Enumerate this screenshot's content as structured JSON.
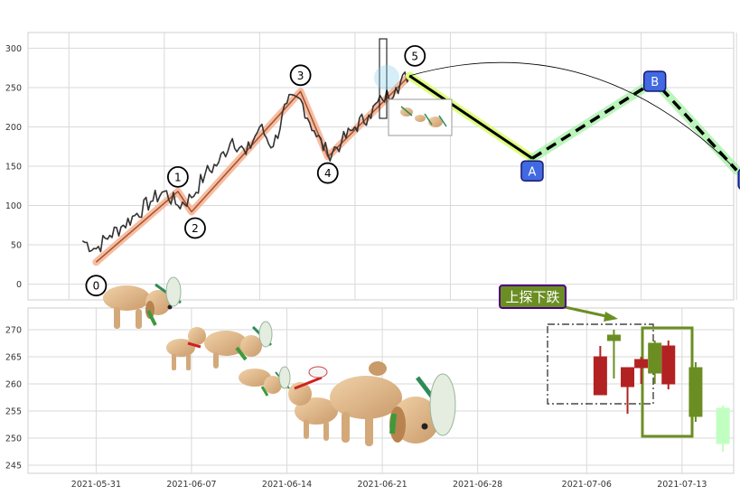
{
  "chart_data": [
    {
      "type": "line",
      "panel": "top",
      "ylim": [
        -20,
        320
      ],
      "yticks": [
        0,
        50,
        100,
        150,
        200,
        250,
        300
      ],
      "xlabel": "",
      "ylabel": "",
      "grid": true,
      "price_series": {
        "x": [
          "2021-05-30",
          "2021-05-31",
          "2021-06-01",
          "2021-06-02",
          "2021-06-03",
          "2021-06-04",
          "2021-06-05",
          "2021-06-06",
          "2021-06-07",
          "2021-06-08",
          "2021-06-09",
          "2021-06-10",
          "2021-06-11",
          "2021-06-12",
          "2021-06-13",
          "2021-06-14",
          "2021-06-15",
          "2021-06-16",
          "2021-06-17",
          "2021-06-18",
          "2021-06-19",
          "2021-06-20",
          "2021-06-21",
          "2021-06-22",
          "2021-06-23"
        ],
        "y": [
          55,
          45,
          62,
          75,
          90,
          105,
          118,
          100,
          110,
          140,
          155,
          185,
          165,
          200,
          175,
          230,
          235,
          195,
          165,
          180,
          200,
          215,
          235,
          250,
          268
        ]
      },
      "wave_points": [
        {
          "label": "0",
          "x": "2021-05-31",
          "y": 28
        },
        {
          "label": "1",
          "x": "2021-06-06",
          "y": 118
        },
        {
          "label": "2",
          "x": "2021-06-07",
          "y": 92
        },
        {
          "label": "3",
          "x": "2021-06-15",
          "y": 245
        },
        {
          "label": "4",
          "x": "2021-06-17",
          "y": 162
        },
        {
          "label": "5",
          "x": "2021-06-23",
          "y": 265
        }
      ],
      "correction_points": [
        {
          "label": "A",
          "x": "2021-07-02",
          "y": 160
        },
        {
          "label": "B",
          "x": "2021-07-11",
          "y": 258
        },
        {
          "label": "C",
          "x": "2021-07-17",
          "y": 145
        }
      ]
    },
    {
      "type": "candlestick",
      "panel": "bottom",
      "ylim": [
        243.5,
        274
      ],
      "yticks": [
        245,
        250,
        255,
        260,
        265,
        270
      ],
      "xticks": [
        "2021-05-31",
        "2021-06-07",
        "2021-06-14",
        "2021-06-21",
        "2021-06-28",
        "2021-07-06",
        "2021-07-13"
      ],
      "annotation": "上探下跌",
      "candles": [
        {
          "x": "2021-07-07",
          "open": 265,
          "close": 258,
          "high": 267,
          "low": 258,
          "color": "#b22222"
        },
        {
          "x": "2021-07-08",
          "open": 268,
          "close": 269,
          "high": 270,
          "low": 261,
          "color": "#6b8e23"
        },
        {
          "x": "2021-07-09",
          "open": 263,
          "close": 259.5,
          "high": 263,
          "low": 254.5,
          "color": "#b22222"
        },
        {
          "x": "2021-07-10",
          "open": 264.5,
          "close": 263,
          "high": 265,
          "low": 260,
          "color": "#b22222"
        },
        {
          "x": "2021-07-11",
          "open": 262,
          "close": 267.5,
          "high": 268,
          "low": 260,
          "color": "#6b8e23"
        },
        {
          "x": "2021-07-12",
          "open": 267,
          "close": 260,
          "high": 268,
          "low": 259,
          "color": "#b22222"
        },
        {
          "x": "2021-07-14",
          "open": 254,
          "close": 263,
          "high": 264,
          "low": 253,
          "color": "#6b8e23"
        },
        {
          "x": "2021-07-16",
          "open": 255.5,
          "close": 249,
          "high": 256,
          "low": 247.5,
          "color": "#c1ffc1"
        }
      ]
    }
  ]
}
